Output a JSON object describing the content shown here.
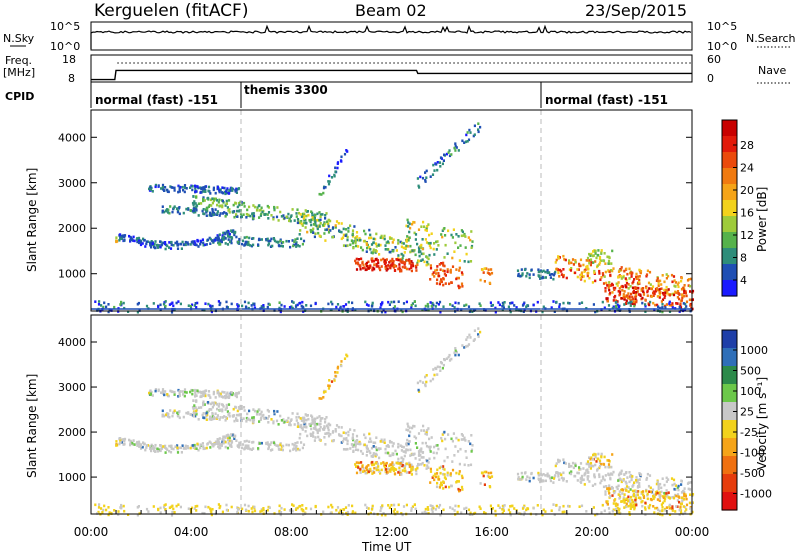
{
  "header": {
    "station": "Kerguelen (fitACF)",
    "beam": "Beam 02",
    "date": "23/Sep/2015"
  },
  "chart_data": [
    {
      "id": "nsky_nsearch",
      "type": "line",
      "left_label": "N.Sky",
      "right_label": "N.Search",
      "left_ticks": [
        "10^5",
        "10^0"
      ],
      "right_ticks": [
        "10^5",
        "10^0"
      ]
    },
    {
      "id": "freq_nave",
      "type": "line",
      "left_label_line1": "Freq.",
      "left_label_line2": "[MHz]",
      "right_label": "Nave",
      "left_ticks": [
        "18",
        "8"
      ],
      "right_ticks": [
        "60",
        "0"
      ],
      "freq_series": {
        "x_hours": [
          0,
          0.95,
          1.0,
          13.0,
          13.05,
          24
        ],
        "y_mhz": [
          8.9,
          8.9,
          12.3,
          12.3,
          11.2,
          11.2
        ],
        "ylim": [
          8,
          18
        ]
      }
    },
    {
      "id": "cpid",
      "type": "table",
      "label": "CPID",
      "segments": [
        {
          "start_h": 0,
          "end_h": 6,
          "name": "normal (fast) -151"
        },
        {
          "start_h": 6,
          "end_h": 18,
          "name": "themis 3300"
        },
        {
          "start_h": 18,
          "end_h": 24,
          "name": "normal (fast) -151"
        }
      ]
    },
    {
      "id": "power",
      "type": "heatmap",
      "ylabel": "Slant Range [km]",
      "yticks": [
        1000,
        2000,
        3000,
        4000
      ],
      "ylim": [
        180,
        4600
      ],
      "xlim": [
        0,
        24
      ],
      "colorbar_label": "Power [dB]",
      "colorbar_ticks": [
        "4",
        "8",
        "12",
        "16",
        "20",
        "24",
        "28"
      ],
      "colorbar_colors": [
        "#1a1aff",
        "#1f4fb4",
        "#2e8d7a",
        "#55b24b",
        "#9ecb3a",
        "#f2d21c",
        "#f5a418",
        "#f07a10",
        "#eb4a0c",
        "#e21a0a",
        "#c80000"
      ]
    },
    {
      "id": "velocity",
      "type": "heatmap",
      "ylabel": "Slant Range [km]",
      "yticks": [
        1000,
        2000,
        3000,
        4000
      ],
      "ylim": [
        180,
        4600
      ],
      "xlim": [
        0,
        24
      ],
      "xticks": [
        "00:00",
        "04:00",
        "08:00",
        "12:00",
        "16:00",
        "20:00",
        "00:00"
      ],
      "xlabel": "Time UT",
      "colorbar_label": "Velocity [m s⁻¹]",
      "colorbar_ticks": [
        "1000",
        "500",
        "100",
        "25",
        "-25",
        "-100",
        "-500",
        "-1000"
      ],
      "colorbar_colors": [
        "#1f3fa8",
        "#2f6fb8",
        "#2c8a4a",
        "#6cc84a",
        "#c8c8c8",
        "#f2d21c",
        "#f5a418",
        "#ef7010",
        "#e63c0c",
        "#e01010"
      ]
    }
  ]
}
